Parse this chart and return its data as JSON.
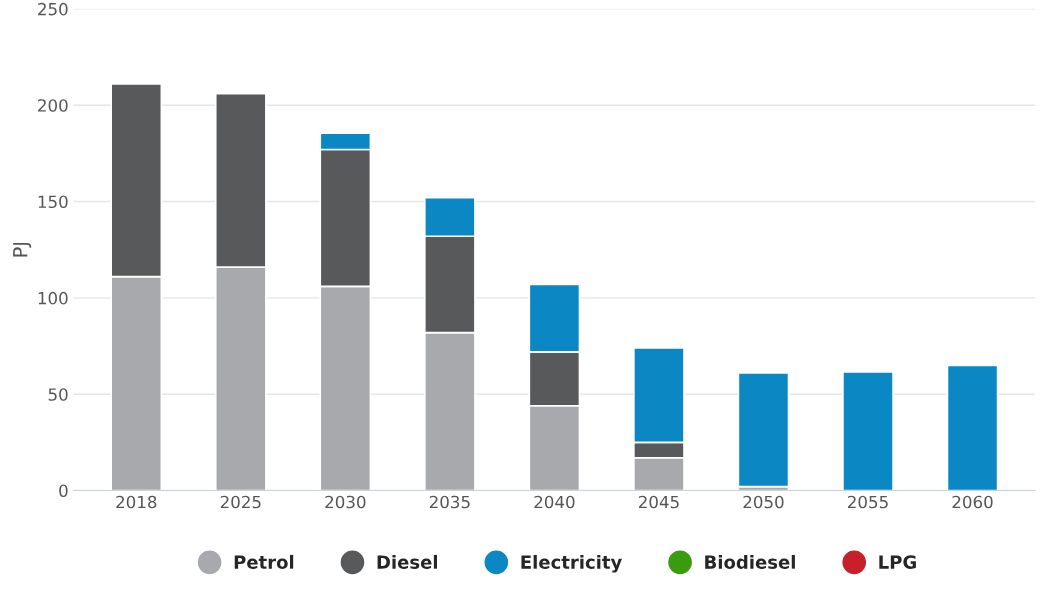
{
  "chart_data": {
    "type": "bar",
    "stacked": true,
    "ylabel": "PJ",
    "categories": [
      "2018",
      "2025",
      "2030",
      "2035",
      "2040",
      "2045",
      "2050",
      "2055",
      "2060"
    ],
    "series": [
      {
        "name": "Petrol",
        "color": "#a7a9ac",
        "values": [
          111,
          116,
          106,
          82,
          44,
          17,
          2,
          null,
          null
        ]
      },
      {
        "name": "Diesel",
        "color": "#58595b",
        "values": [
          100,
          90,
          71,
          50,
          28,
          8,
          null,
          null,
          null
        ]
      },
      {
        "name": "Electricity",
        "color": "#0b87c4",
        "values": [
          null,
          null,
          8.5,
          20,
          35,
          49,
          59,
          61.5,
          65
        ]
      },
      {
        "name": "Biodiesel",
        "color": "#3a9b0f",
        "values": [
          null,
          null,
          null,
          null,
          null,
          null,
          null,
          null,
          null
        ]
      },
      {
        "name": "LPG",
        "color": "#c8202a",
        "values": [
          null,
          null,
          null,
          null,
          null,
          null,
          null,
          null,
          null
        ]
      }
    ],
    "ylim": [
      0,
      250
    ],
    "yticks": [
      0,
      50,
      100,
      150,
      200,
      250
    ],
    "grid": "y",
    "legend": "bottom",
    "marker": "circle"
  }
}
